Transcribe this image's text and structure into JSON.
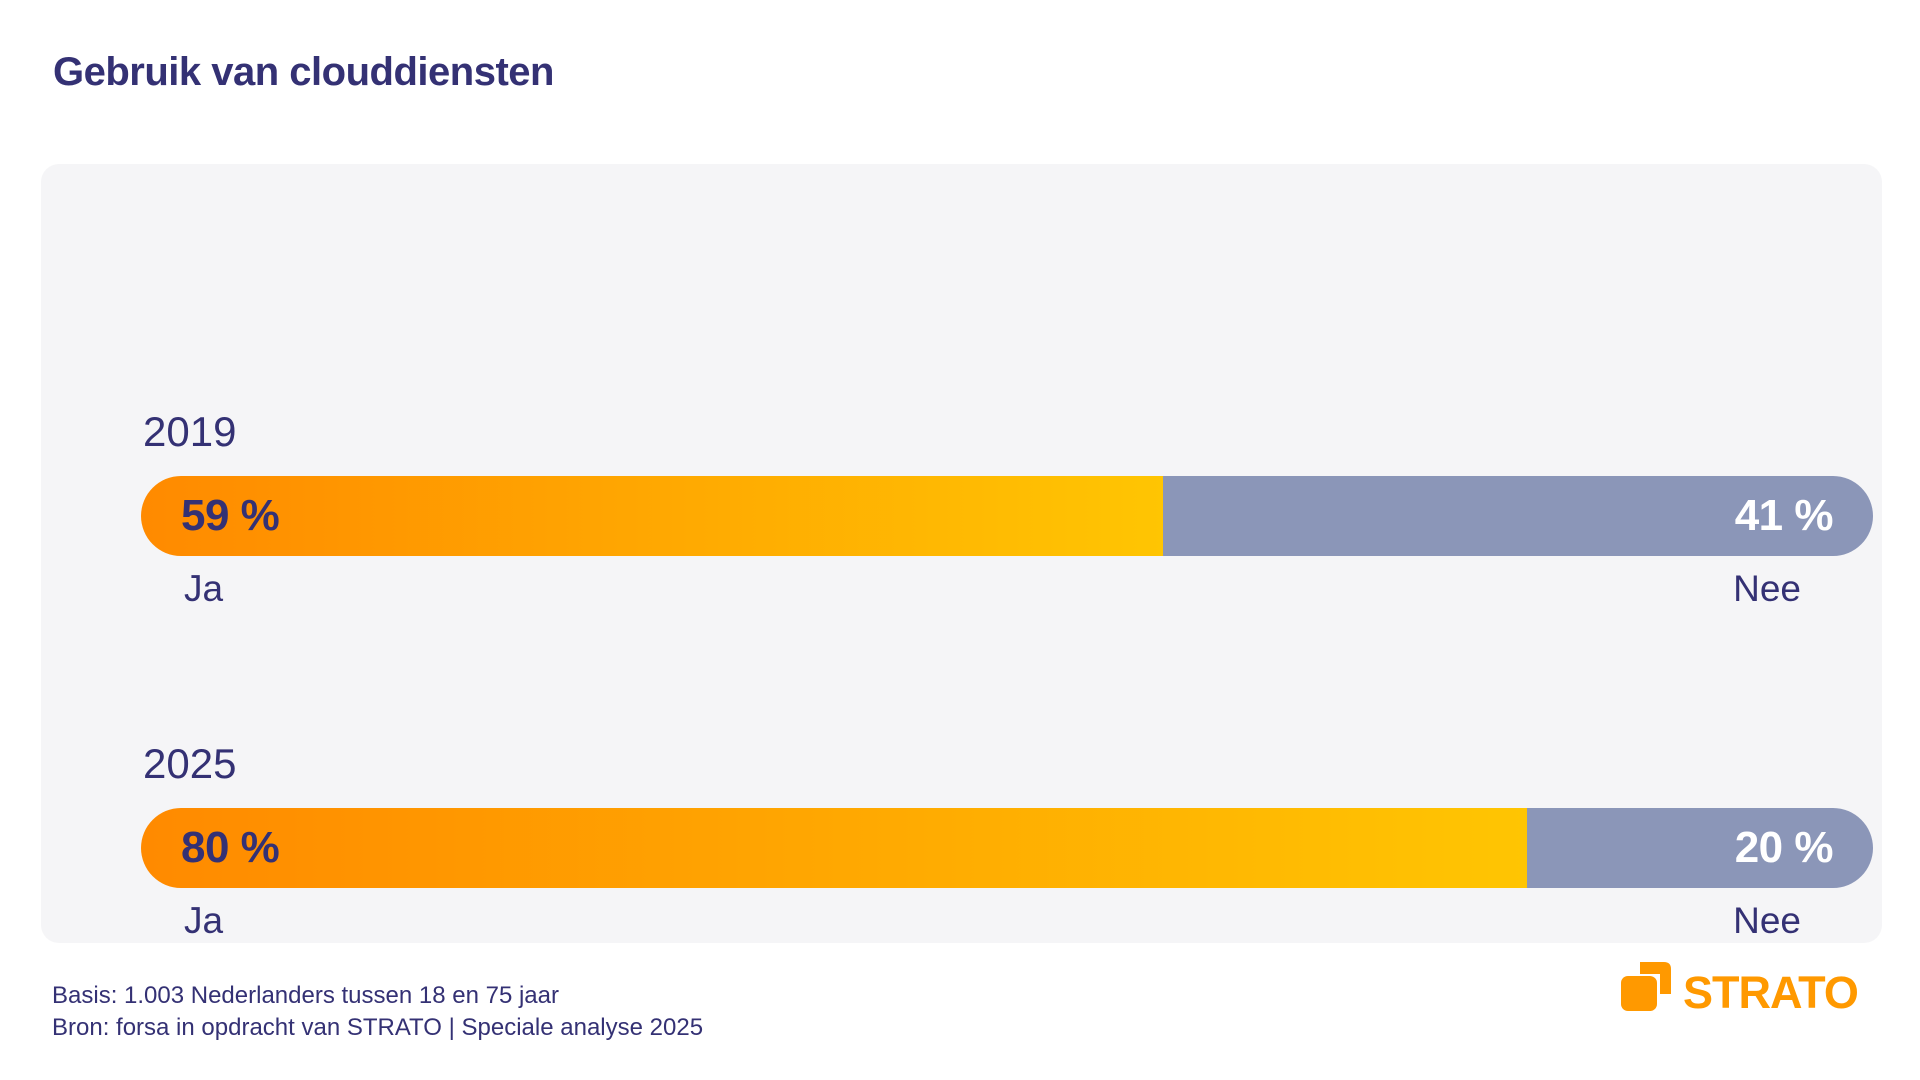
{
  "title": "Gebruik van clouddiensten",
  "colors": {
    "navy": "#343174",
    "bar_gradient_start": "#ff8a00",
    "bar_gradient_end": "#ffc502",
    "bar_no": "#8b96b8",
    "card_background": "#f5f5f7",
    "logo_orange": "#ff9900",
    "pct_no_text": "#ffffff"
  },
  "chart_data": {
    "type": "bar",
    "orientation": "horizontal-stacked",
    "title": "Gebruik van clouddiensten",
    "categories": [
      "2019",
      "2025"
    ],
    "series": [
      {
        "name": "Ja",
        "values": [
          59,
          80
        ]
      },
      {
        "name": "Nee",
        "values": [
          41,
          20
        ]
      }
    ],
    "unit": "%",
    "xlim": [
      0,
      100
    ],
    "grid": false,
    "legend_position": "below-bar-ends"
  },
  "rows": [
    {
      "year": "2019",
      "yes_value": 59,
      "no_value": 41,
      "yes_label": "59 %",
      "no_label": "41 %",
      "yes_caption": "Ja",
      "no_caption": "Nee"
    },
    {
      "year": "2025",
      "yes_value": 80,
      "no_value": 20,
      "yes_label": "80 %",
      "no_label": "20 %",
      "yes_caption": "Ja",
      "no_caption": "Nee"
    }
  ],
  "footer": {
    "line1": "Basis: 1.003 Nederlanders tussen 18 en 75 jaar",
    "line2": "Bron: forsa in opdracht van STRATO | Speciale analyse 2025"
  },
  "logo": {
    "text": "STRATO"
  }
}
